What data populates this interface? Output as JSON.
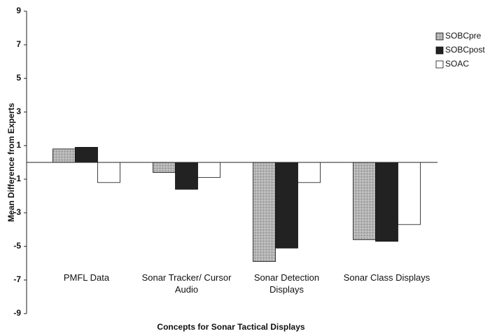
{
  "chart_data": {
    "type": "bar",
    "x_label": "Concepts for Sonar Tactical Displays",
    "y_label": "Mean Difference from Experts",
    "categories": [
      "PMFL Data",
      "Sonar Tracker/ Cursor Audio",
      "Sonar Detection Displays",
      "Sonar Class Displays"
    ],
    "series": [
      {
        "name": "SOBCpre",
        "color": "#a9a9a9",
        "values": [
          0.8,
          -0.6,
          -5.9,
          -4.6
        ]
      },
      {
        "name": "SOBCpost",
        "color": "#222222",
        "values": [
          0.9,
          -1.6,
          -5.1,
          -4.7
        ]
      },
      {
        "name": "SOAC",
        "color": "#ffffff",
        "values": [
          -1.2,
          -0.9,
          -1.2,
          -3.7
        ]
      }
    ],
    "ylim": [
      -9,
      9
    ],
    "yticks": [
      -9,
      -7,
      -5,
      -3,
      -1,
      1,
      3,
      5,
      7,
      9
    ],
    "legend": "top-right"
  }
}
